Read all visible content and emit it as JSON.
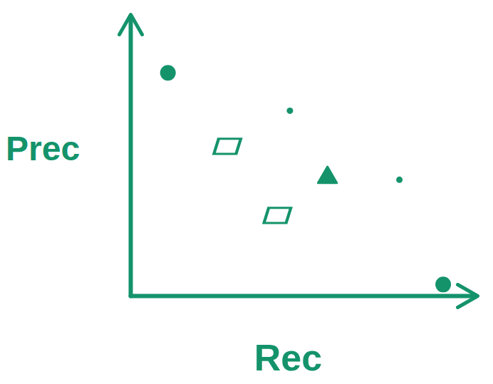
{
  "chart_data": {
    "type": "scatter",
    "x_label": "Rec",
    "y_label": "Prec",
    "xlim": [
      0,
      1.1
    ],
    "ylim": [
      0,
      1.25
    ],
    "xticks": [],
    "yticks": [],
    "tick_labels": false,
    "grid": false,
    "color": "#14936b",
    "series": [
      {
        "marker": "circle",
        "x": [
          0.12,
          1.0
        ],
        "values": [
          1.0,
          0.05
        ]
      },
      {
        "marker": "dot",
        "x": [
          0.51,
          0.86
        ],
        "values": [
          0.83,
          0.52
        ]
      },
      {
        "marker": "square",
        "x": [
          0.31,
          0.47
        ],
        "values": [
          0.67,
          0.36
        ]
      },
      {
        "marker": "triangle",
        "x": [
          0.63
        ],
        "values": [
          0.53
        ]
      }
    ]
  }
}
